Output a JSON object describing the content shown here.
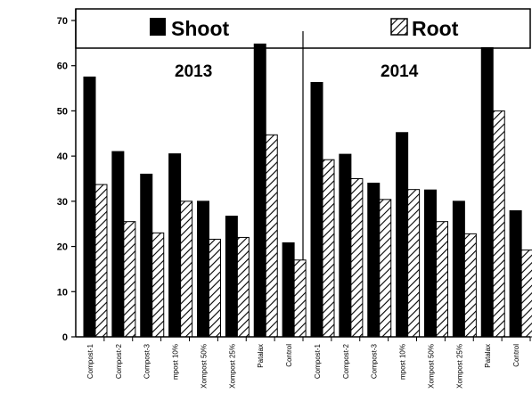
{
  "chart_data": {
    "type": "bar",
    "ylabel": "",
    "ylim": [
      0,
      70
    ],
    "y_ticks": [
      0,
      10,
      20,
      30,
      40,
      50,
      60,
      70
    ],
    "grid": false,
    "legend_position": "top",
    "colors": {
      "Shoot": "#000000",
      "Root": "hatched"
    },
    "groups": [
      {
        "label": "2013",
        "categories": [
          "Compost-1",
          "Compost-2",
          "Compost-3",
          "mpost 10%",
          "Xompost 50%",
          "Xompost 25%",
          "Patalax",
          "Control"
        ],
        "series": [
          {
            "name": "Shoot",
            "values": [
              57.5,
              41,
              36,
              40.5,
              30,
              26.7,
              64.8,
              20.8
            ]
          },
          {
            "name": "Root",
            "values": [
              33.7,
              25.5,
              23,
              30,
              21.6,
              22,
              44.7,
              17
            ]
          }
        ]
      },
      {
        "label": "2014",
        "categories": [
          "Compost-1",
          "Compost-2",
          "Compost-3",
          "mpost 10%",
          "Xompost 50%",
          "Xompost 25%",
          "Patalax",
          "Control"
        ],
        "series": [
          {
            "name": "Shoot",
            "values": [
              56.3,
              40.4,
              34,
              45.2,
              32.5,
              30,
              64,
              27.9
            ]
          },
          {
            "name": "Root",
            "values": [
              39.2,
              35,
              30.4,
              32.6,
              25.5,
              22.8,
              50,
              19.2
            ]
          }
        ]
      }
    ]
  }
}
